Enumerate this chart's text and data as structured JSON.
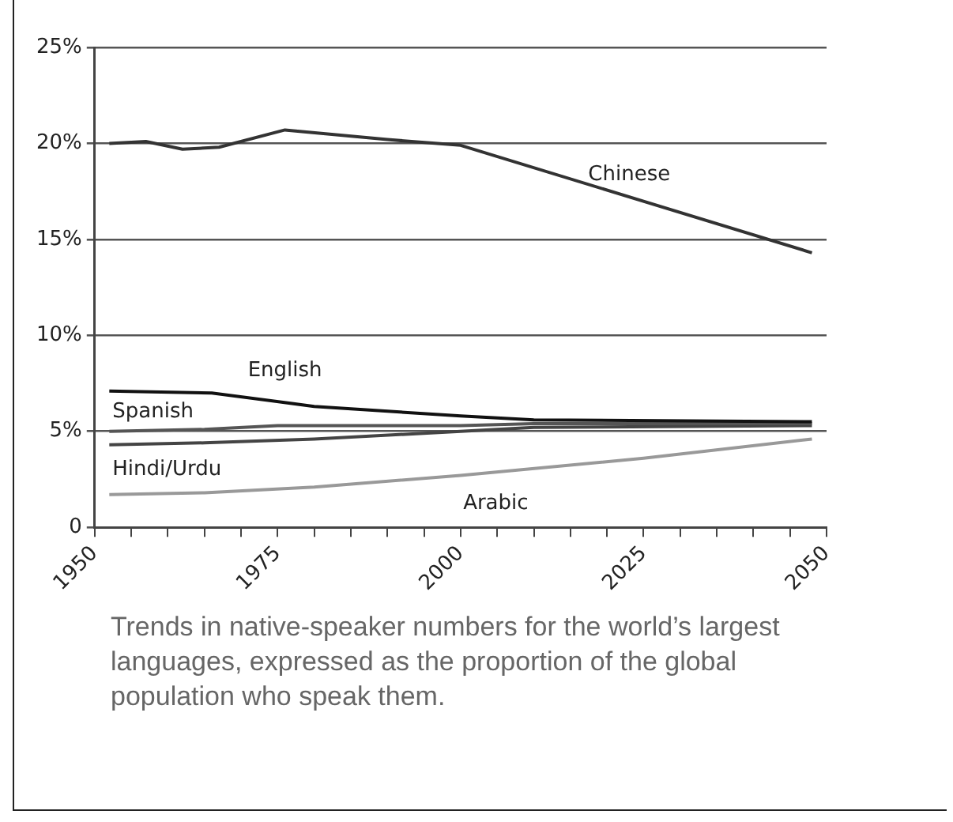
{
  "chart_data": {
    "type": "line",
    "annotations": [
      "Trends in native-speaker numbers for the world’s largest languages, expressed as the proportion of the global population who speak them."
    ],
    "series": [
      {
        "name": "Chinese",
        "color": "#333333",
        "x": [
          1952,
          1957,
          1962,
          1967,
          1976,
          1990,
          2000,
          2048
        ],
        "values": [
          20.0,
          20.1,
          19.7,
          19.8,
          20.7,
          20.2,
          19.9,
          14.3
        ]
      },
      {
        "name": "English",
        "color": "#111111",
        "x": [
          1952,
          1966,
          1980,
          2000,
          2010,
          2048
        ],
        "values": [
          7.1,
          7.0,
          6.3,
          5.8,
          5.6,
          5.5
        ]
      },
      {
        "name": "Spanish",
        "color": "#555555",
        "x": [
          1952,
          1965,
          1975,
          2000,
          2010,
          2048
        ],
        "values": [
          5.0,
          5.1,
          5.3,
          5.3,
          5.4,
          5.4
        ]
      },
      {
        "name": "Hindi/Urdu",
        "color": "#444444",
        "x": [
          1952,
          1965,
          1980,
          2000,
          2010,
          2048
        ],
        "values": [
          4.3,
          4.4,
          4.6,
          5.0,
          5.2,
          5.3
        ]
      },
      {
        "name": "Arabic",
        "color": "#999999",
        "x": [
          1952,
          1965,
          1980,
          2000,
          2025,
          2048
        ],
        "values": [
          1.7,
          1.8,
          2.1,
          2.7,
          3.6,
          4.6
        ]
      }
    ],
    "xlim": [
      1950,
      2050
    ],
    "xticks": [
      1950,
      {
        "value": 1955,
        "label": null
      },
      {
        "value": 1960,
        "label": null
      },
      {
        "value": 1965,
        "label": null
      },
      {
        "value": 1970,
        "label": null
      },
      1975,
      {
        "value": 1980,
        "label": null
      },
      {
        "value": 1985,
        "label": null
      },
      {
        "value": 1990,
        "label": null
      },
      {
        "value": 1995,
        "label": null
      },
      2000,
      {
        "value": 2005,
        "label": null
      },
      {
        "value": 2010,
        "label": null
      },
      {
        "value": 2015,
        "label": null
      },
      {
        "value": 2020,
        "label": null
      },
      2025,
      {
        "value": 2030,
        "label": null
      },
      {
        "value": 2035,
        "label": null
      },
      {
        "value": 2040,
        "label": null
      },
      {
        "value": 2045,
        "label": null
      },
      2050
    ],
    "ylim": [
      0,
      25
    ],
    "yticks": [
      0,
      {
        "value": 5,
        "label": "5%"
      },
      {
        "value": 10,
        "label": "10%"
      },
      {
        "value": 15,
        "label": "15%"
      },
      {
        "value": 20,
        "label": "20%"
      },
      {
        "value": 25,
        "label": "25%"
      }
    ],
    "grid": "y",
    "legend": false,
    "marker": "none",
    "line_style": "solid"
  }
}
